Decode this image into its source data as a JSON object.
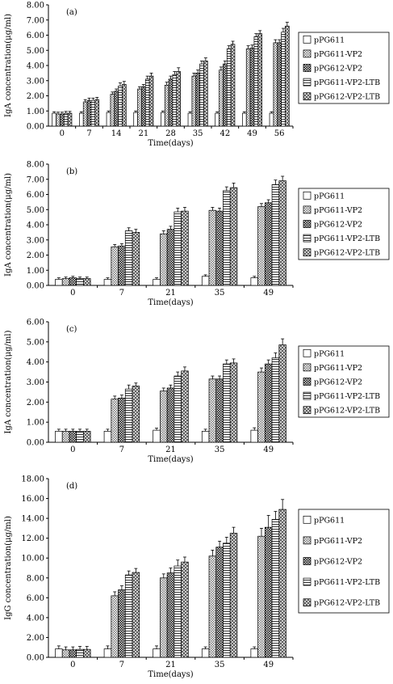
{
  "chart_data": [
    {
      "type": "bar",
      "panel_label": "(a)",
      "categories": [
        "0",
        "7",
        "14",
        "21",
        "28",
        "35",
        "42",
        "49",
        "56"
      ],
      "xlabel": "Time(days)",
      "ylabel": "IgA concentration(μg/ml)",
      "ylim": [
        0,
        8
      ],
      "yticks": [
        "0.00",
        "1.00",
        "2.00",
        "3.00",
        "4.00",
        "5.00",
        "6.00",
        "7.00",
        "8.00"
      ],
      "legend_position": "right",
      "series": [
        {
          "name": "pPG611",
          "pattern": "white",
          "values": [
            0.85,
            0.85,
            0.9,
            0.9,
            0.9,
            0.85,
            0.85,
            0.85,
            0.85
          ],
          "errors": [
            0.1,
            0.1,
            0.1,
            0.1,
            0.1,
            0.1,
            0.1,
            0.1,
            0.1
          ]
        },
        {
          "name": "pPG611-VP2",
          "pattern": "lightcheck",
          "values": [
            0.8,
            1.6,
            2.1,
            2.45,
            2.7,
            3.3,
            3.7,
            5.1,
            5.5
          ],
          "errors": [
            0.12,
            0.15,
            0.15,
            0.15,
            0.2,
            0.2,
            0.2,
            0.2,
            0.2
          ]
        },
        {
          "name": "pPG612-VP2",
          "pattern": "darkcheck",
          "values": [
            0.8,
            1.7,
            2.3,
            2.6,
            3.1,
            3.5,
            4.1,
            5.15,
            5.5
          ],
          "errors": [
            0.12,
            0.15,
            0.15,
            0.15,
            0.2,
            0.2,
            0.2,
            0.2,
            0.2
          ]
        },
        {
          "name": "pPG611-VP2-LTB",
          "pattern": "hstripe",
          "values": [
            0.85,
            1.7,
            2.65,
            3.1,
            3.4,
            4.1,
            5.1,
            5.9,
            6.2
          ],
          "errors": [
            0.12,
            0.15,
            0.2,
            0.2,
            0.2,
            0.2,
            0.2,
            0.2,
            0.25
          ]
        },
        {
          "name": "pPG612-VP2-LTB",
          "pattern": "crosshatch",
          "values": [
            0.85,
            1.75,
            2.75,
            3.3,
            3.6,
            4.3,
            5.4,
            6.1,
            6.6
          ],
          "errors": [
            0.12,
            0.15,
            0.2,
            0.2,
            0.25,
            0.2,
            0.2,
            0.2,
            0.25
          ]
        }
      ]
    },
    {
      "type": "bar",
      "panel_label": "(b)",
      "categories": [
        "0",
        "7",
        "21",
        "35",
        "49"
      ],
      "xlabel": "Time(days)",
      "ylabel": "IgA concentration(μg/ml)",
      "ylim": [
        0,
        8
      ],
      "yticks": [
        "0.00",
        "1.00",
        "2.00",
        "3.00",
        "4.00",
        "5.00",
        "6.00",
        "7.00",
        "8.00"
      ],
      "legend_position": "right",
      "series": [
        {
          "name": "pPG611",
          "pattern": "white",
          "values": [
            0.4,
            0.4,
            0.4,
            0.6,
            0.5
          ],
          "errors": [
            0.1,
            0.1,
            0.1,
            0.1,
            0.1
          ]
        },
        {
          "name": "pPG611-VP2",
          "pattern": "lightcheck",
          "values": [
            0.45,
            2.55,
            3.4,
            4.95,
            5.2
          ],
          "errors": [
            0.1,
            0.15,
            0.2,
            0.2,
            0.2
          ]
        },
        {
          "name": "pPG612-VP2",
          "pattern": "darkcheck",
          "values": [
            0.5,
            2.6,
            3.7,
            4.9,
            5.45
          ],
          "errors": [
            0.1,
            0.15,
            0.2,
            0.2,
            0.2
          ]
        },
        {
          "name": "pPG611-VP2-LTB",
          "pattern": "hstripe",
          "values": [
            0.45,
            3.6,
            4.85,
            6.25,
            6.65
          ],
          "errors": [
            0.1,
            0.2,
            0.25,
            0.25,
            0.3
          ]
        },
        {
          "name": "pPG612-VP2-LTB",
          "pattern": "crosshatch",
          "values": [
            0.45,
            3.5,
            4.9,
            6.45,
            6.9
          ],
          "errors": [
            0.1,
            0.2,
            0.25,
            0.3,
            0.3
          ]
        }
      ]
    },
    {
      "type": "bar",
      "panel_label": "(c)",
      "categories": [
        "0",
        "7",
        "21",
        "35",
        "49"
      ],
      "xlabel": "Time(days)",
      "ylabel": "IgA concentration(μg/ml)",
      "ylim": [
        0,
        6
      ],
      "yticks": [
        "0.00",
        "1.00",
        "2.00",
        "3.00",
        "4.00",
        "5.00",
        "6.00"
      ],
      "legend_position": "right",
      "series": [
        {
          "name": "pPG611",
          "pattern": "white",
          "values": [
            0.55,
            0.55,
            0.6,
            0.55,
            0.6
          ],
          "errors": [
            0.1,
            0.1,
            0.1,
            0.1,
            0.12
          ]
        },
        {
          "name": "pPG611-VP2",
          "pattern": "lightcheck",
          "values": [
            0.55,
            2.15,
            2.55,
            3.15,
            3.5
          ],
          "errors": [
            0.1,
            0.15,
            0.15,
            0.15,
            0.2
          ]
        },
        {
          "name": "pPG612-VP2",
          "pattern": "darkcheck",
          "values": [
            0.55,
            2.2,
            2.7,
            3.15,
            3.9
          ],
          "errors": [
            0.1,
            0.15,
            0.15,
            0.15,
            0.2
          ]
        },
        {
          "name": "pPG611-VP2-LTB",
          "pattern": "hstripe",
          "values": [
            0.55,
            2.65,
            3.3,
            3.9,
            4.2
          ],
          "errors": [
            0.1,
            0.2,
            0.2,
            0.2,
            0.25
          ]
        },
        {
          "name": "pPG612-VP2-LTB",
          "pattern": "crosshatch",
          "values": [
            0.55,
            2.8,
            3.55,
            3.95,
            4.85
          ],
          "errors": [
            0.1,
            0.15,
            0.2,
            0.2,
            0.3
          ]
        }
      ]
    },
    {
      "type": "bar",
      "panel_label": "(d)",
      "categories": [
        "0",
        "7",
        "21",
        "35",
        "49"
      ],
      "xlabel": "Time(days)",
      "ylabel": "IgG concentration(μg/ml)",
      "ylim": [
        0,
        18
      ],
      "yticks": [
        "0.00",
        "2.00",
        "4.00",
        "6.00",
        "8.00",
        "10.00",
        "12.00",
        "14.00",
        "16.00",
        "18.00"
      ],
      "legend_position": "right",
      "series": [
        {
          "name": "pPG611",
          "pattern": "white",
          "values": [
            0.85,
            0.85,
            0.85,
            0.85,
            0.85
          ],
          "errors": [
            0.3,
            0.3,
            0.3,
            0.2,
            0.2
          ]
        },
        {
          "name": "pPG611-VP2",
          "pattern": "lightcheck",
          "values": [
            0.75,
            6.2,
            8.0,
            10.2,
            12.2
          ],
          "errors": [
            0.3,
            0.4,
            0.4,
            0.6,
            0.8
          ]
        },
        {
          "name": "pPG612-VP2",
          "pattern": "darkcheck",
          "values": [
            0.75,
            6.8,
            8.5,
            11.1,
            13.1
          ],
          "errors": [
            0.3,
            0.4,
            0.5,
            0.6,
            1.2
          ]
        },
        {
          "name": "pPG611-VP2-LTB",
          "pattern": "hstripe",
          "values": [
            0.8,
            8.3,
            9.2,
            11.5,
            13.9
          ],
          "errors": [
            0.3,
            0.4,
            0.6,
            0.6,
            0.8
          ]
        },
        {
          "name": "pPG612-VP2-LTB",
          "pattern": "crosshatch",
          "values": [
            0.8,
            8.55,
            9.6,
            12.5,
            14.9
          ],
          "errors": [
            0.3,
            0.4,
            0.5,
            0.6,
            1.0
          ]
        }
      ]
    }
  ]
}
